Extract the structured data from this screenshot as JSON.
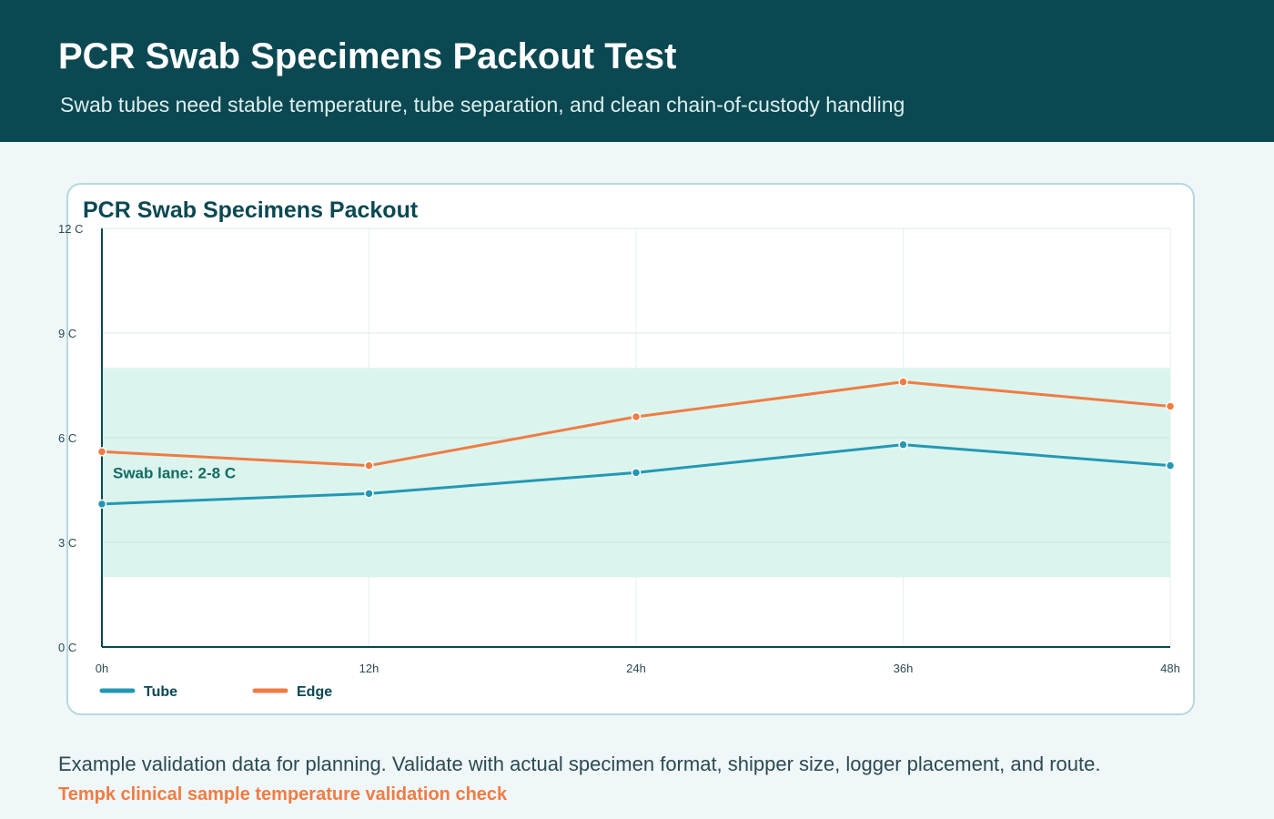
{
  "header": {
    "title": "PCR Swab Specimens Packout Test",
    "subtitle": "Swab tubes need stable temperature, tube separation, and clean chain-of-custody handling"
  },
  "footer": {
    "note": "Example validation data for planning. Validate with actual specimen format, shipper size, logger placement, and route.",
    "brand": "Tempk clinical sample temperature validation check"
  },
  "chart_data": {
    "type": "line",
    "title": "PCR Swab Specimens Packout",
    "xlabel": "",
    "ylabel": "",
    "x": [
      0,
      12,
      24,
      36,
      48
    ],
    "x_tick_labels": [
      "0h",
      "12h",
      "24h",
      "36h",
      "48h"
    ],
    "xlim": [
      0,
      48
    ],
    "ylim": [
      0,
      12
    ],
    "y_ticks": [
      0,
      3,
      6,
      9,
      12
    ],
    "y_tick_labels": [
      "0 C",
      "3 C",
      "6 C",
      "9 C",
      "12 C"
    ],
    "grid": true,
    "band": {
      "low": 2,
      "high": 8,
      "label": "Swab lane: 2-8 C",
      "color": "#d9f3ed"
    },
    "legend": "bottom-left",
    "series": [
      {
        "name": "Tube",
        "color": "#2498b3",
        "values": [
          4.1,
          4.4,
          5.0,
          5.8,
          5.2
        ]
      },
      {
        "name": "Edge",
        "color": "#f07c43",
        "values": [
          5.6,
          5.2,
          6.6,
          7.6,
          6.9
        ]
      }
    ]
  }
}
